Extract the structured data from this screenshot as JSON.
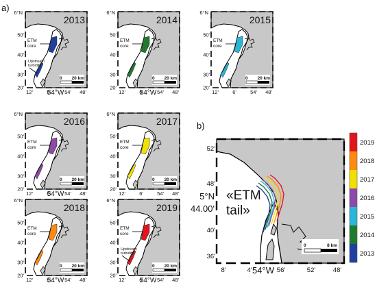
{
  "panel_a_label": "a)",
  "panel_b_label": "b)",
  "small_maps": [
    {
      "year": "2013",
      "color": "#2040a0",
      "show_lon_label": true,
      "etm_label": "ETM\ncore",
      "upstream_label": "Upstream\nturbidity"
    },
    {
      "year": "2014",
      "color": "#1f7a2e",
      "show_lon_label": true,
      "etm_label": "ETM\ncore",
      "upstream_label": ""
    },
    {
      "year": "2015",
      "color": "#29b6d8",
      "show_lon_label": false,
      "etm_label": "ETM\ncore",
      "upstream_label": ""
    },
    {
      "year": "2016",
      "color": "#8e4aa8",
      "show_lon_label": true,
      "etm_label": "ETM\ncore",
      "upstream_label": ""
    },
    {
      "year": "2017",
      "color": "#f2e000",
      "show_lon_label": false,
      "etm_label": "ETM\ncore",
      "upstream_label": ""
    },
    {
      "year": "2018",
      "color": "#ff8a10",
      "show_lon_label": true,
      "etm_label": "ETM\ncore",
      "upstream_label": ""
    },
    {
      "year": "2019",
      "color": "#e4141c",
      "show_lon_label": true,
      "etm_label": "ETM\ncore",
      "upstream_label": "Upstream\nturbidity"
    }
  ],
  "small_axes": {
    "lat_top": "6°N",
    "lat_ticks": [
      "50'",
      "40'",
      "30'",
      "20'"
    ],
    "lon_ticks": [
      "12'",
      "6'",
      "54'",
      "48'"
    ],
    "lon_label": "54°W",
    "scale_zero": "0",
    "scale_label": "20 km"
  },
  "big_map": {
    "lat_ticks": [
      "52'",
      "48'",
      "40'",
      "36'"
    ],
    "lat_label_deg": "5°N",
    "lat_label_min": "44.00'",
    "lon_ticks": [
      "8'",
      "4'",
      "56'",
      "52'",
      "48'"
    ],
    "lon_label": "54°W",
    "tail_label": "«ETM\ntail»",
    "scale_zero": "0",
    "scale_label": "8 km"
  },
  "legend": {
    "entries": [
      {
        "label": "2019",
        "color": "#e4141c"
      },
      {
        "label": "2018",
        "color": "#ff8a10"
      },
      {
        "label": "2017",
        "color": "#f2e000"
      },
      {
        "label": "2016",
        "color": "#8e4aa8"
      },
      {
        "label": "2015",
        "color": "#29b6d8"
      },
      {
        "label": "2014",
        "color": "#1f7a2e"
      },
      {
        "label": "2013",
        "color": "#2040a0"
      }
    ]
  }
}
